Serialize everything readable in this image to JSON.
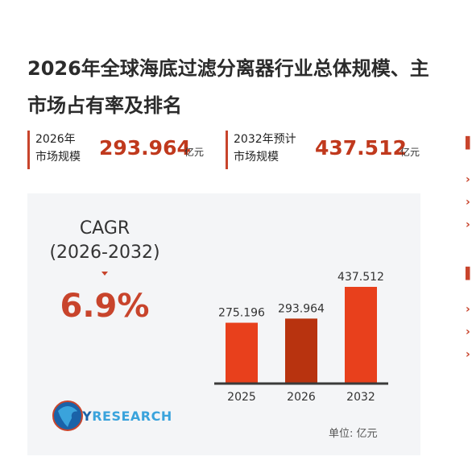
{
  "title": {
    "line1": "2026年全球海底过滤分离器行业总体规模、主",
    "line2": "市场占有率及排名"
  },
  "stats": [
    {
      "label_line1": "2026年",
      "label_line2": "市场规模",
      "value": "293.964",
      "unit": "亿元"
    },
    {
      "label_line1": "2032年预计",
      "label_line2": "市场规模",
      "value": "437.512",
      "unit": "亿元"
    }
  ],
  "cagr": {
    "label": "CAGR",
    "period": "(2026-2032)",
    "value": "6.9%"
  },
  "unit_note": "单位:  亿元",
  "logo": {
    "part1": "QY",
    "part2": "RESEARCH"
  },
  "colors": {
    "accent": "#c8442c",
    "bar_light": "#e8401c",
    "bar_dark": "#b8330f",
    "panel": "#f4f5f7"
  },
  "chart_data": {
    "type": "bar",
    "categories": [
      "2025",
      "2026",
      "2032"
    ],
    "values": [
      275.196,
      293.964,
      437.512
    ],
    "value_labels": [
      "275.196",
      "293.964",
      "437.512"
    ],
    "title": "",
    "xlabel": "",
    "ylabel": "",
    "ylim": [
      0,
      500
    ],
    "grid": false,
    "legend": "none"
  }
}
